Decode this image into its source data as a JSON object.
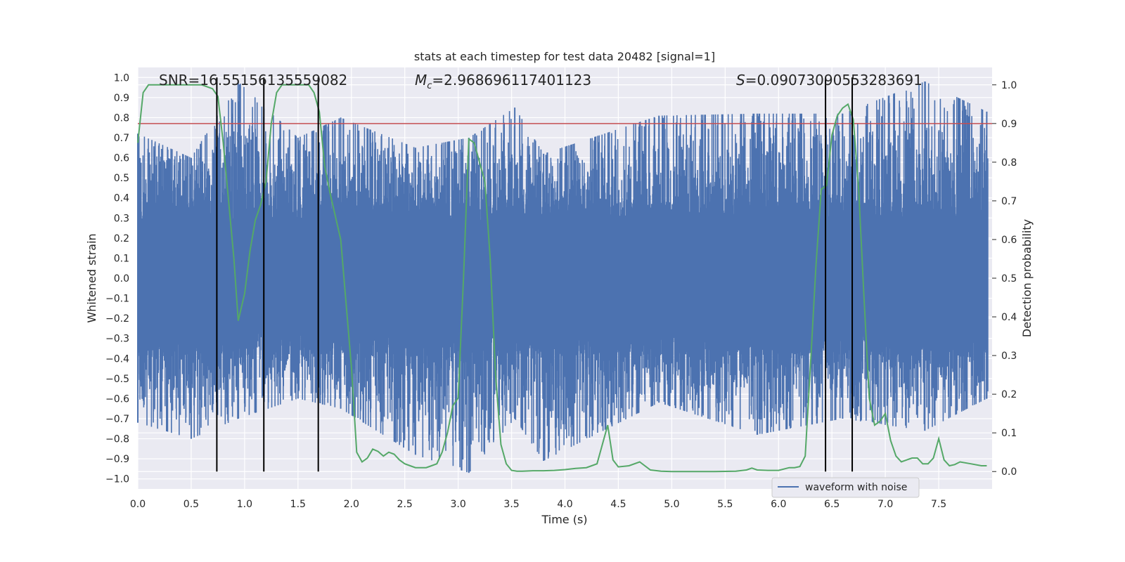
{
  "chart_data": {
    "type": "line",
    "title": "stats at each timestep for test data 20482 [signal=1]",
    "xlabel": "Time (s)",
    "ylabel_left": "Whitened strain",
    "ylabel_right": "Detection probability",
    "xlim": [
      0.0,
      8.0
    ],
    "ylim_left": [
      -1.05,
      1.05
    ],
    "ylim_right": [
      -0.045,
      1.045
    ],
    "x_ticks": [
      0.0,
      0.5,
      1.0,
      1.5,
      2.0,
      2.5,
      3.0,
      3.5,
      4.0,
      4.5,
      5.0,
      5.5,
      6.0,
      6.5,
      7.0,
      7.5
    ],
    "x_tick_labels": [
      "0.0",
      "0.5",
      "1.0",
      "1.5",
      "2.0",
      "2.5",
      "3.0",
      "3.5",
      "4.0",
      "4.5",
      "5.0",
      "5.5",
      "6.0",
      "6.5",
      "7.0",
      "7.5"
    ],
    "y_left_ticks": [
      -1.0,
      -0.9,
      -0.8,
      -0.7,
      -0.6,
      -0.5,
      -0.4,
      -0.3,
      -0.2,
      -0.1,
      0.0,
      0.1,
      0.2,
      0.3,
      0.4,
      0.5,
      0.6,
      0.7,
      0.8,
      0.9,
      1.0
    ],
    "y_left_tick_labels": [
      "−1.0",
      "−0.9",
      "−0.8",
      "−0.7",
      "−0.6",
      "−0.5",
      "−0.4",
      "−0.3",
      "−0.2",
      "−0.1",
      "0.0",
      "0.1",
      "0.2",
      "0.3",
      "0.4",
      "0.5",
      "0.6",
      "0.7",
      "0.8",
      "0.9",
      "1.0"
    ],
    "y_right_ticks": [
      0.0,
      0.1,
      0.2,
      0.3,
      0.4,
      0.5,
      0.6,
      0.7,
      0.8,
      0.9,
      1.0
    ],
    "y_right_tick_labels": [
      "0.0",
      "0.1",
      "0.2",
      "0.3",
      "0.4",
      "0.5",
      "0.6",
      "0.7",
      "0.8",
      "0.9",
      "1.0"
    ],
    "grid": true,
    "threshold": 0.9,
    "threshold_color": "#c44e52",
    "vertical_lines": [
      0.74,
      1.18,
      1.69,
      6.44,
      6.69
    ],
    "waveform": {
      "name": "waveform with noise",
      "color": "#4c72b0",
      "core_amplitude": 0.22,
      "envelope_points": [
        {
          "t": 0.0,
          "upper": 0.72,
          "lower": -0.72
        },
        {
          "t": 0.5,
          "upper": 0.6,
          "lower": -0.8
        },
        {
          "t": 0.94,
          "upper": 0.98,
          "lower": -0.7
        },
        {
          "t": 1.5,
          "upper": 0.7,
          "lower": -0.6
        },
        {
          "t": 1.9,
          "upper": 0.8,
          "lower": -0.65
        },
        {
          "t": 2.6,
          "upper": 0.65,
          "lower": -0.88
        },
        {
          "t": 3.1,
          "upper": 0.7,
          "lower": -0.97
        },
        {
          "t": 3.53,
          "upper": 0.85,
          "lower": -0.7
        },
        {
          "t": 3.8,
          "upper": 0.62,
          "lower": -0.91
        },
        {
          "t": 4.88,
          "upper": 0.81,
          "lower": -0.62
        },
        {
          "t": 5.8,
          "upper": 0.82,
          "lower": -0.78
        },
        {
          "t": 6.6,
          "upper": 0.82,
          "lower": -0.7
        },
        {
          "t": 7.37,
          "upper": 0.98,
          "lower": -0.76
        },
        {
          "t": 7.95,
          "upper": 0.83,
          "lower": -0.6
        }
      ]
    },
    "detection_probability": {
      "name": "Detection probability",
      "color": "#55a868",
      "x": [
        0.0,
        0.05,
        0.1,
        0.2,
        0.3,
        0.4,
        0.5,
        0.6,
        0.7,
        0.75,
        0.8,
        0.85,
        0.9,
        0.94,
        1.0,
        1.05,
        1.1,
        1.15,
        1.2,
        1.25,
        1.3,
        1.35,
        1.4,
        1.5,
        1.6,
        1.65,
        1.7,
        1.75,
        1.8,
        1.9,
        2.0,
        2.05,
        2.1,
        2.15,
        2.2,
        2.25,
        2.3,
        2.35,
        2.4,
        2.45,
        2.5,
        2.55,
        2.6,
        2.65,
        2.7,
        2.75,
        2.8,
        2.85,
        2.9,
        2.95,
        3.0,
        3.05,
        3.1,
        3.15,
        3.2,
        3.25,
        3.3,
        3.35,
        3.4,
        3.45,
        3.5,
        3.55,
        3.6,
        3.7,
        3.8,
        3.9,
        4.0,
        4.1,
        4.2,
        4.25,
        4.3,
        4.35,
        4.4,
        4.45,
        4.5,
        4.6,
        4.7,
        4.8,
        4.9,
        5.0,
        5.2,
        5.4,
        5.6,
        5.7,
        5.75,
        5.8,
        5.9,
        6.0,
        6.1,
        6.15,
        6.2,
        6.25,
        6.3,
        6.35,
        6.4,
        6.45,
        6.5,
        6.55,
        6.6,
        6.65,
        6.7,
        6.75,
        6.8,
        6.85,
        6.9,
        6.95,
        7.0,
        7.05,
        7.1,
        7.15,
        7.2,
        7.25,
        7.3,
        7.35,
        7.4,
        7.45,
        7.5,
        7.55,
        7.6,
        7.65,
        7.7,
        7.8,
        7.9,
        7.95
      ],
      "y": [
        0.85,
        0.98,
        1.0,
        1.0,
        1.0,
        1.0,
        1.0,
        1.0,
        0.99,
        0.97,
        0.85,
        0.7,
        0.55,
        0.39,
        0.46,
        0.57,
        0.65,
        0.69,
        0.75,
        0.9,
        0.98,
        1.0,
        1.0,
        1.0,
        1.0,
        0.98,
        0.93,
        0.79,
        0.72,
        0.6,
        0.27,
        0.05,
        0.025,
        0.035,
        0.058,
        0.052,
        0.04,
        0.05,
        0.045,
        0.03,
        0.02,
        0.015,
        0.01,
        0.01,
        0.01,
        0.015,
        0.02,
        0.05,
        0.1,
        0.17,
        0.19,
        0.5,
        0.86,
        0.85,
        0.8,
        0.75,
        0.55,
        0.25,
        0.07,
        0.02,
        0.003,
        0.001,
        0.001,
        0.002,
        0.002,
        0.003,
        0.005,
        0.008,
        0.01,
        0.015,
        0.02,
        0.07,
        0.12,
        0.03,
        0.012,
        0.015,
        0.025,
        0.004,
        0.001,
        0.0,
        0.0,
        0.0,
        0.001,
        0.004,
        0.009,
        0.004,
        0.003,
        0.003,
        0.01,
        0.01,
        0.013,
        0.04,
        0.28,
        0.53,
        0.73,
        0.74,
        0.87,
        0.92,
        0.94,
        0.95,
        0.91,
        0.73,
        0.45,
        0.19,
        0.12,
        0.13,
        0.15,
        0.08,
        0.04,
        0.025,
        0.03,
        0.035,
        0.035,
        0.02,
        0.02,
        0.035,
        0.085,
        0.03,
        0.015,
        0.018,
        0.025,
        0.02,
        0.015,
        0.015
      ]
    },
    "annotations": [
      {
        "text": "SNR=16.55156135559082",
        "x": 0.2
      },
      {
        "text_symbol": "M",
        "text_sub": "c",
        "text_rest": "=2.968696117401123",
        "x": 2.6
      },
      {
        "text_symbol": "S",
        "text_rest": "=0.09073090553283691",
        "x": 5.6
      }
    ],
    "legend": {
      "position": "lower-right",
      "entries": [
        "waveform with noise"
      ]
    }
  }
}
